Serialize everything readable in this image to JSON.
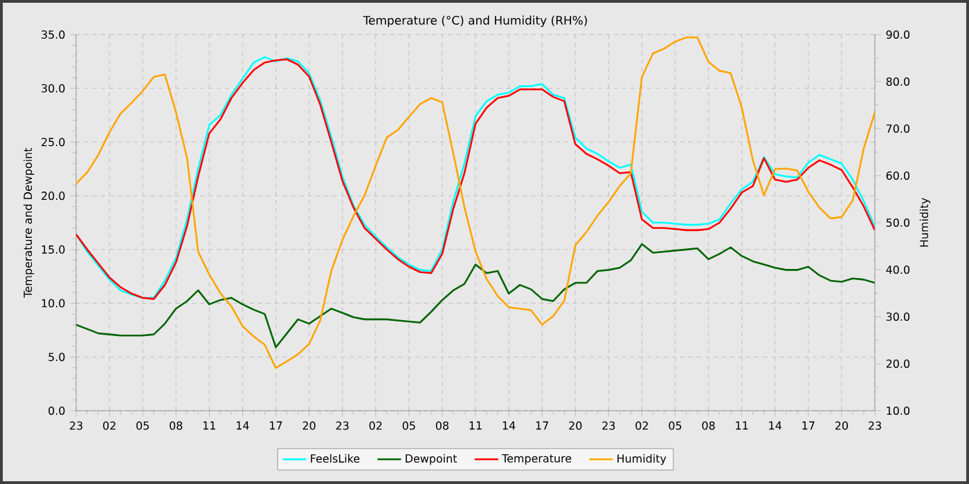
{
  "chart_data": {
    "type": "line",
    "title": "Temperature (°C) and Humidity (RH%)",
    "ylabel": "Temperature and Dewpoint",
    "y2label": "Humidity",
    "grid": true,
    "legend": "bottom",
    "categories": [
      "23",
      null,
      null,
      "02",
      null,
      null,
      "05",
      null,
      null,
      "08",
      null,
      null,
      "11",
      null,
      null,
      "14",
      null,
      null,
      "17",
      null,
      null,
      "20",
      null,
      null,
      "23",
      null,
      null,
      "02",
      null,
      null,
      "05",
      null,
      null,
      "08",
      null,
      null,
      "11",
      null,
      null,
      "14",
      null,
      null,
      "17",
      null,
      null,
      "20",
      null,
      null,
      "23",
      null,
      null,
      "02",
      null,
      null,
      "05",
      null,
      null,
      "08",
      null,
      null,
      "11",
      null,
      null,
      "14",
      null,
      null,
      "17",
      null,
      null,
      "20",
      null,
      null,
      "23"
    ],
    "ylim": [
      0,
      35
    ],
    "yticks": [
      {
        "value": 0,
        "label": "0.0"
      },
      {
        "value": 5,
        "label": "5.0"
      },
      {
        "value": 10,
        "label": "10.0"
      },
      {
        "value": 15,
        "label": "15.0"
      },
      {
        "value": 20,
        "label": "20.0"
      },
      {
        "value": 25,
        "label": "25.0"
      },
      {
        "value": 30,
        "label": "30.0"
      },
      {
        "value": 35,
        "label": "35.0"
      }
    ],
    "y2lim": [
      10,
      90
    ],
    "y2ticks": [
      {
        "value": 10,
        "label": "10.0"
      },
      {
        "value": 20,
        "label": "20.0"
      },
      {
        "value": 30,
        "label": "30.0"
      },
      {
        "value": 40,
        "label": "40.0"
      },
      {
        "value": 50,
        "label": "50.0"
      },
      {
        "value": 60,
        "label": "60.0"
      },
      {
        "value": 70,
        "label": "70.0"
      },
      {
        "value": 80,
        "label": "80.0"
      },
      {
        "value": 90,
        "label": "90.0"
      }
    ],
    "series": [
      {
        "name": "FeelsLike",
        "color": "#00ffff",
        "values": [
          16.4,
          14.8,
          13.5,
          12.2,
          11.2,
          10.8,
          10.5,
          10.5,
          12.1,
          14.2,
          17.8,
          22.5,
          26.6,
          27.5,
          29.4,
          30.9,
          32.4,
          32.9,
          32.5,
          32.8,
          32.5,
          31.4,
          28.9,
          25.5,
          21.8,
          19.1,
          17.3,
          16.2,
          15.2,
          14.3,
          13.6,
          13.1,
          13.0,
          15.0,
          19.5,
          23.0,
          27.4,
          28.8,
          29.4,
          29.6,
          30.2,
          30.2,
          30.4,
          29.4,
          29.1,
          25.4,
          24.4,
          23.9,
          23.2,
          22.6,
          22.9,
          18.5,
          17.5,
          17.5,
          17.4,
          17.3,
          17.3,
          17.4,
          17.8,
          19.3,
          20.6,
          21.3,
          23.6,
          22.0,
          21.8,
          21.7,
          23.1,
          23.8,
          23.4,
          23.0,
          21.5,
          19.5,
          17.1
        ]
      },
      {
        "name": "Dewpoint",
        "color": "#006400",
        "values": [
          8.0,
          7.6,
          7.2,
          7.1,
          7.0,
          7.0,
          7.0,
          7.1,
          8.1,
          9.5,
          10.2,
          11.2,
          9.9,
          10.3,
          10.5,
          9.9,
          9.4,
          9.0,
          5.9,
          7.2,
          8.5,
          8.1,
          8.8,
          9.5,
          9.1,
          8.7,
          8.5,
          8.5,
          8.5,
          8.4,
          8.3,
          8.2,
          9.2,
          10.3,
          11.2,
          11.8,
          13.6,
          12.8,
          13.0,
          10.9,
          11.7,
          11.3,
          10.4,
          10.2,
          11.3,
          11.9,
          11.9,
          13.0,
          13.1,
          13.3,
          14.0,
          15.5,
          14.7,
          14.8,
          14.9,
          15.0,
          15.1,
          14.1,
          14.6,
          15.2,
          14.4,
          13.9,
          13.6,
          13.3,
          13.1,
          13.1,
          13.4,
          12.6,
          12.1,
          12.0,
          12.3,
          12.2,
          11.9
        ]
      },
      {
        "name": "Temperature",
        "color": "#ff0000",
        "values": [
          16.4,
          15.0,
          13.7,
          12.4,
          11.5,
          10.9,
          10.5,
          10.4,
          11.7,
          13.8,
          17.2,
          21.8,
          25.8,
          27.1,
          29.1,
          30.5,
          31.7,
          32.4,
          32.6,
          32.7,
          32.2,
          31.1,
          28.5,
          25.0,
          21.4,
          18.9,
          17.0,
          16.0,
          15.0,
          14.1,
          13.4,
          12.9,
          12.8,
          14.6,
          18.8,
          22.1,
          26.7,
          28.2,
          29.1,
          29.3,
          29.9,
          29.9,
          29.9,
          29.2,
          28.8,
          24.8,
          23.9,
          23.4,
          22.8,
          22.1,
          22.2,
          17.8,
          17.0,
          17.0,
          16.9,
          16.8,
          16.8,
          16.9,
          17.5,
          18.8,
          20.3,
          20.9,
          23.5,
          21.5,
          21.3,
          21.5,
          22.6,
          23.3,
          22.9,
          22.4,
          20.8,
          19.0,
          16.8
        ]
      },
      {
        "name": "Humidity",
        "color": "#ffa500",
        "axis": "y2",
        "values": [
          58.3,
          60.7,
          64.4,
          69.2,
          73.2,
          75.5,
          78.0,
          81.0,
          81.5,
          73.5,
          63.7,
          43.8,
          39.0,
          35.0,
          32.2,
          28.0,
          25.8,
          24.0,
          19.1,
          20.5,
          22.0,
          24.2,
          29.2,
          39.7,
          46.3,
          51.4,
          55.8,
          62.1,
          68.1,
          69.7,
          72.5,
          75.2,
          76.5,
          75.6,
          64.7,
          53.3,
          43.9,
          38.0,
          34.4,
          32.0,
          31.7,
          31.4,
          28.3,
          30.1,
          33.4,
          45.2,
          48.0,
          51.5,
          54.4,
          57.8,
          60.5,
          81.0,
          86.0,
          87.0,
          88.5,
          89.4,
          89.4,
          84.2,
          82.3,
          81.8,
          74.5,
          63.3,
          55.8,
          61.4,
          61.5,
          61.1,
          56.6,
          53.2,
          50.9,
          51.2,
          54.7,
          65.8,
          73.5
        ]
      }
    ]
  }
}
